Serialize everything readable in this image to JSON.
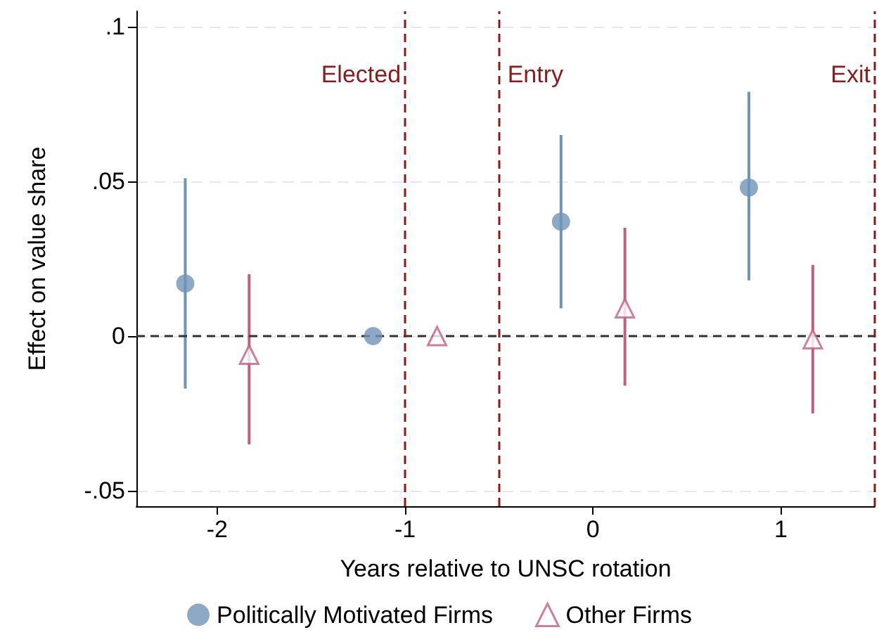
{
  "chart_data": {
    "type": "scatter",
    "xlabel": "Years relative to UNSC rotation",
    "ylabel": "Effect on value share",
    "xlim": [
      -2.43,
      1.5
    ],
    "xticks": [
      -2,
      -1,
      0,
      1
    ],
    "ylim": [
      -0.055,
      0.105
    ],
    "yticks": [
      {
        "value": -0.05,
        "label": "-.05"
      },
      {
        "value": 0,
        "label": "0"
      },
      {
        "value": 0.05,
        "label": ".05"
      },
      {
        "value": 0.1,
        "label": ".1"
      }
    ],
    "grid": "y",
    "legend": "bottom",
    "series": [
      {
        "name": "Politically Motivated Firms",
        "color": "#7094b8",
        "marker": "circle",
        "x": [
          -2.17,
          -1.17,
          -0.17,
          0.83
        ],
        "values": [
          0.017,
          0,
          0.037,
          0.048
        ],
        "errors": [
          [
            -0.017,
            0.051
          ],
          null,
          [
            0.009,
            0.065
          ],
          [
            0.018,
            0.079
          ]
        ]
      },
      {
        "name": "Other Firms",
        "color": "#c0607f",
        "marker": "triangle",
        "x": [
          -1.83,
          -0.83,
          0.17,
          1.17
        ],
        "values": [
          -0.006,
          0,
          0.009,
          -0.001
        ],
        "errors": [
          [
            -0.035,
            0.02
          ],
          null,
          [
            -0.016,
            0.035
          ],
          [
            -0.025,
            0.023
          ]
        ]
      }
    ],
    "ref_lines": [
      {
        "axis": "y",
        "value": 0,
        "color": "#333333",
        "line_style": "dashed"
      },
      {
        "axis": "x",
        "value": -1,
        "label": "Elected",
        "color": "#8b1a1a",
        "line_style": "dashed"
      },
      {
        "axis": "x",
        "value": -0.5,
        "label": "Entry",
        "color": "#8b1a1a",
        "line_style": "dashed"
      },
      {
        "axis": "x",
        "value": 1.5,
        "label": "Exit",
        "color": "#8b1a1a",
        "line_style": "dashed"
      }
    ]
  }
}
